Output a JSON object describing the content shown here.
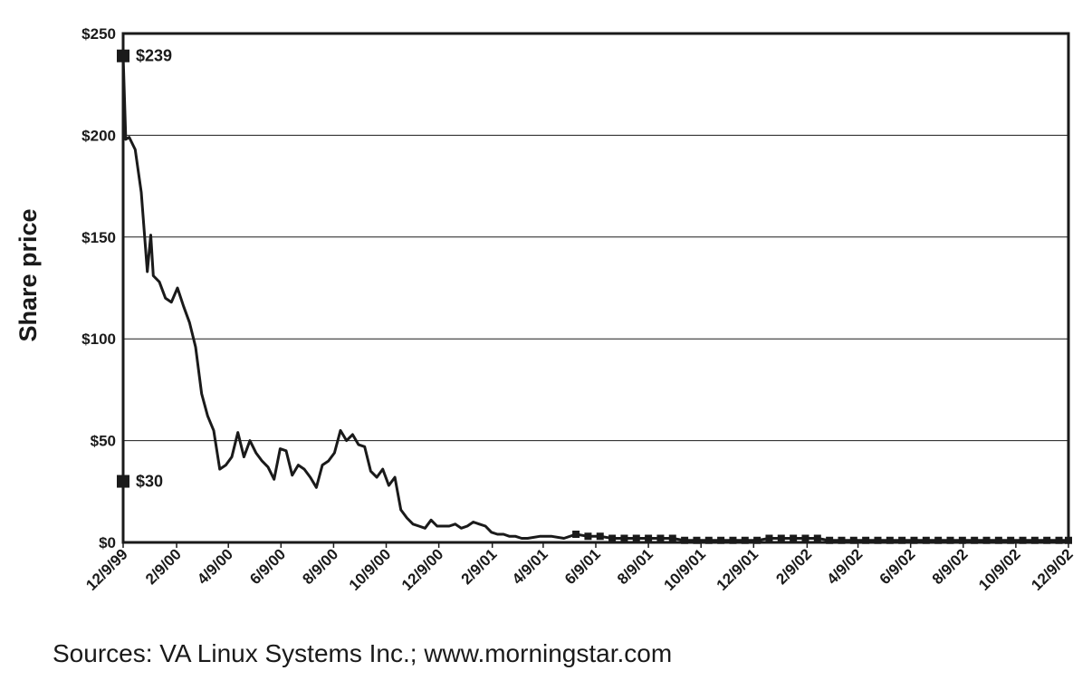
{
  "chart_data": {
    "type": "line",
    "title": "",
    "ylabel": "Share price",
    "xlabel": "",
    "ylim": [
      0,
      250
    ],
    "xlim": [
      "12/9/99",
      "12/9/02"
    ],
    "y_ticks": [
      "$0",
      "$50",
      "$100",
      "$150",
      "$200",
      "$250"
    ],
    "y_tick_values": [
      0,
      50,
      100,
      150,
      200,
      250
    ],
    "x_ticks": [
      "12/9/99",
      "2/9/00",
      "4/9/00",
      "6/9/00",
      "8/9/00",
      "10/9/00",
      "12/9/00",
      "2/9/01",
      "4/9/01",
      "6/9/01",
      "8/9/01",
      "10/9/01",
      "12/9/01",
      "2/9/02",
      "4/9/02",
      "6/9/02",
      "8/9/02",
      "10/9/02",
      "12/9/02"
    ],
    "grid": "horizontal",
    "colors": {
      "line": "#1a1a1a",
      "grid": "#1a1a1a",
      "markers": "#1a1a1a"
    },
    "series": [
      {
        "x": [
          "12/9/99",
          "12/12/99",
          "12/16/99",
          "12/23/99",
          "12/30/99",
          "1/6/00",
          "1/10/00",
          "1/13/00",
          "1/20/00",
          "1/27/00",
          "2/3/00",
          "2/10/00",
          "2/17/00",
          "2/24/00",
          "3/2/00",
          "3/9/00",
          "3/16/00",
          "3/23/00",
          "3/30/00",
          "4/6/00",
          "4/13/00",
          "4/20/00",
          "4/27/00",
          "5/4/00",
          "5/11/00",
          "5/18/00",
          "5/25/00",
          "6/1/00",
          "6/8/00",
          "6/15/00",
          "6/22/00",
          "6/29/00",
          "7/6/00",
          "7/13/00",
          "7/20/00",
          "7/27/00",
          "8/3/00",
          "8/10/00",
          "8/17/00",
          "8/24/00",
          "8/31/00",
          "9/7/00",
          "9/14/00",
          "9/21/00",
          "9/28/00",
          "10/5/00",
          "10/12/00",
          "10/19/00",
          "10/26/00",
          "11/2/00",
          "11/9/00",
          "11/16/00",
          "11/23/00",
          "11/30/00",
          "12/7/00",
          "12/14/00",
          "12/21/00",
          "12/28/00",
          "1/4/01",
          "1/11/01",
          "1/18/01",
          "1/25/01",
          "2/1/01",
          "2/8/01",
          "2/15/01",
          "2/22/01",
          "3/1/01",
          "3/8/01",
          "3/15/01",
          "3/22/01",
          "4/5/01",
          "4/19/01",
          "5/3/01",
          "5/17/01",
          "5/31/01",
          "6/14/01",
          "6/28/01",
          "7/12/01",
          "7/26/01",
          "8/9/01",
          "8/23/01",
          "9/6/01",
          "9/20/01",
          "10/4/01",
          "10/18/01",
          "11/1/01",
          "11/15/01",
          "11/29/01",
          "12/13/01",
          "12/27/01",
          "1/10/02",
          "1/24/02",
          "2/7/02",
          "2/21/02",
          "3/7/02",
          "3/21/02",
          "4/4/02",
          "4/18/02",
          "5/2/02",
          "5/16/02",
          "5/30/02",
          "6/13/02",
          "6/27/02",
          "7/11/02",
          "7/25/02",
          "8/8/02",
          "8/22/02",
          "9/5/02",
          "9/19/02",
          "10/3/02",
          "10/17/02",
          "10/31/02",
          "11/14/02",
          "11/28/02",
          "12/9/02"
        ],
        "y": [
          239,
          198,
          199,
          193,
          172,
          133,
          151,
          131,
          128,
          120,
          118,
          125,
          116,
          108,
          96,
          73,
          62,
          55,
          36,
          38,
          42,
          54,
          42,
          50,
          44,
          40,
          37,
          31,
          46,
          45,
          33,
          38,
          36,
          32,
          27,
          38,
          40,
          44,
          55,
          50,
          53,
          48,
          47,
          35,
          32,
          36,
          28,
          32,
          16,
          12,
          9,
          8,
          7,
          11,
          8,
          8,
          8,
          9,
          7,
          8,
          10,
          9,
          8,
          5,
          4,
          4,
          3,
          3,
          2,
          2,
          3,
          3,
          2,
          4,
          3,
          3,
          2,
          2,
          2,
          2,
          2,
          2,
          1,
          1,
          1,
          1,
          1,
          1,
          1,
          2,
          2,
          2,
          2,
          2,
          1,
          1,
          1,
          1,
          1,
          1,
          1,
          1,
          1,
          1,
          1,
          1,
          1,
          1,
          1,
          1,
          1,
          1,
          1,
          1,
          1
        ]
      }
    ],
    "annotations": [
      {
        "label": "$239",
        "value": 239,
        "x": "12/9/99"
      },
      {
        "label": "$30",
        "value": 30,
        "x": "12/9/99"
      }
    ],
    "source": "Sources: VA Linux Systems Inc.; www.morningstar.com"
  }
}
